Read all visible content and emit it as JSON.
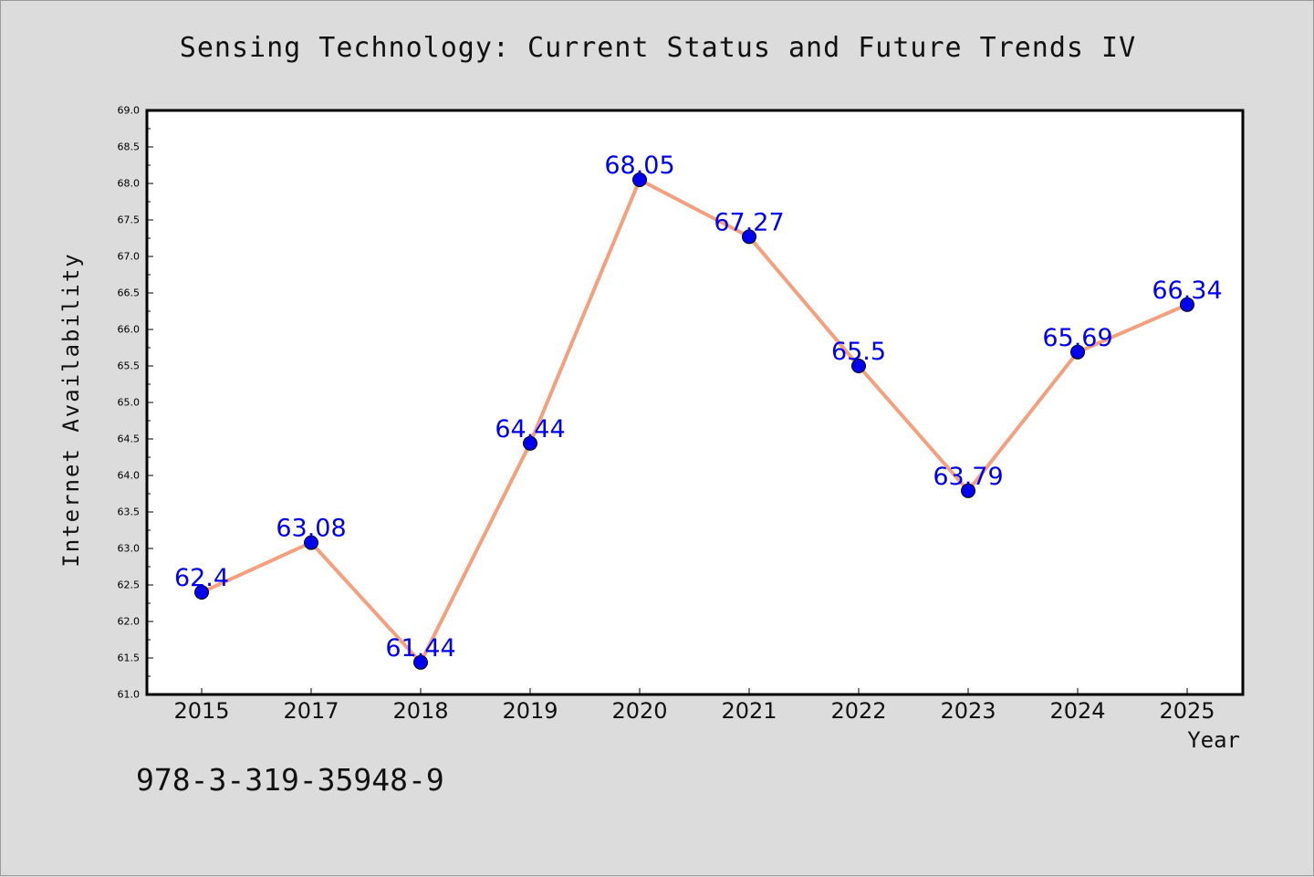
{
  "chart_data": {
    "type": "line",
    "title": "Sensing Technology: Current Status and Future Trends IV",
    "xlabel": "Year",
    "ylabel": "Internet Availability",
    "categories": [
      "2015",
      "2017",
      "2018",
      "2019",
      "2020",
      "2021",
      "2022",
      "2023",
      "2024",
      "2025"
    ],
    "series": [
      {
        "values": [
          62.4,
          63.08,
          61.44,
          64.44,
          68.05,
          67.27,
          65.5,
          63.79,
          65.69,
          66.34
        ],
        "labels": [
          "62.4",
          "63.08",
          "61.44",
          "64.44",
          "68.05",
          "67.27",
          "65.5",
          "63.79",
          "65.69",
          "66.34"
        ]
      }
    ],
    "ylim": [
      61.0,
      69.0
    ],
    "yticks": [
      "61.0",
      "61.5",
      "62.0",
      "62.5",
      "63.0",
      "63.5",
      "64.0",
      "64.5",
      "65.0",
      "65.5",
      "66.0",
      "66.5",
      "67.0",
      "67.5",
      "68.0",
      "68.5",
      "69.0"
    ],
    "grid": false,
    "legend": "none",
    "line_color": "#f4a07f",
    "marker_color": "#0000ee",
    "label_color": "#0000ee"
  },
  "annotation": {
    "isbn": "978-3-319-35948-9"
  }
}
